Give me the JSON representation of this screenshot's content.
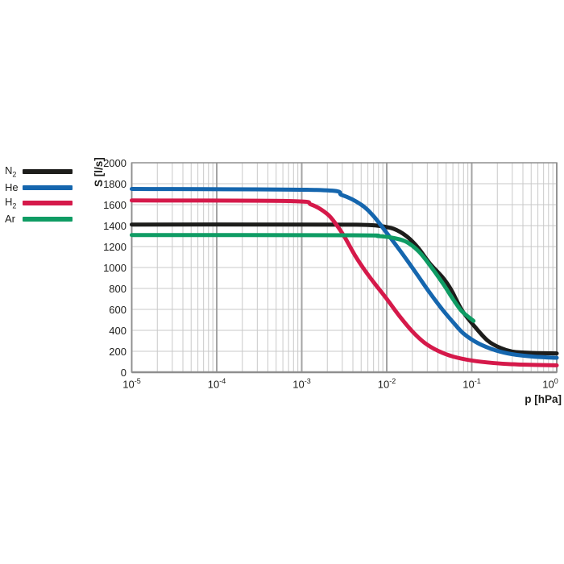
{
  "colors": {
    "background": "#ffffff",
    "text": "#1d1d1b",
    "grid_minor": "#c9c9c9",
    "grid_major": "#a4a4a4",
    "frame": "#8f8f8f",
    "n2": "#1d1d1b",
    "he": "#1566ae",
    "h2": "#d5194a",
    "ar": "#0f9c64"
  },
  "legend": {
    "items": [
      {
        "id": "N2",
        "label": "N",
        "sub": "2",
        "color": "#1d1d1b"
      },
      {
        "id": "He",
        "label": "He",
        "sub": "",
        "color": "#1566ae"
      },
      {
        "id": "H2",
        "label": "H",
        "sub": "2",
        "color": "#d5194a"
      },
      {
        "id": "Ar",
        "label": "Ar",
        "sub": "",
        "color": "#0f9c64"
      }
    ]
  },
  "chart_data": {
    "type": "line",
    "title": "",
    "x_axis": {
      "label": "p [hPa]",
      "scale": "log",
      "unit": "hPa",
      "min_exp": -5,
      "max_exp": 0,
      "tick_base": "10",
      "tick_exponents": [
        -5,
        -4,
        -3,
        -2,
        -1,
        0
      ]
    },
    "y_axis": {
      "label": "S [l/s]",
      "scale": "linear",
      "unit": "l/s",
      "min": 0,
      "max": 2000,
      "tick_step": 200,
      "ticks": [
        0,
        200,
        400,
        600,
        800,
        1000,
        1200,
        1400,
        1600,
        1800,
        2000
      ]
    },
    "grid": true,
    "legend_position": "left",
    "series": [
      {
        "name": "N2",
        "color": "#1d1d1b",
        "points": [
          [
            1e-05,
            1410
          ],
          [
            0.001,
            1410
          ],
          [
            0.005,
            1408
          ],
          [
            0.008,
            1398
          ],
          [
            0.012,
            1370
          ],
          [
            0.017,
            1300
          ],
          [
            0.023,
            1195
          ],
          [
            0.032,
            1040
          ],
          [
            0.046,
            900
          ],
          [
            0.057,
            790
          ],
          [
            0.077,
            590
          ],
          [
            0.11,
            430
          ],
          [
            0.155,
            300
          ],
          [
            0.22,
            230
          ],
          [
            0.31,
            195
          ],
          [
            0.5,
            185
          ],
          [
            1,
            180
          ]
        ]
      },
      {
        "name": "He",
        "color": "#1566ae",
        "points": [
          [
            1e-05,
            1750
          ],
          [
            0.0015,
            1740
          ],
          [
            0.003,
            1690
          ],
          [
            0.005,
            1600
          ],
          [
            0.007,
            1490
          ],
          [
            0.01,
            1330
          ],
          [
            0.015,
            1140
          ],
          [
            0.022,
            950
          ],
          [
            0.032,
            760
          ],
          [
            0.045,
            600
          ],
          [
            0.06,
            480
          ],
          [
            0.08,
            370
          ],
          [
            0.12,
            275
          ],
          [
            0.19,
            210
          ],
          [
            0.3,
            172
          ],
          [
            0.55,
            148
          ],
          [
            1,
            138
          ]
        ]
      },
      {
        "name": "H2",
        "color": "#d5194a",
        "points": [
          [
            1e-05,
            1640
          ],
          [
            0.0007,
            1635
          ],
          [
            0.0013,
            1600
          ],
          [
            0.002,
            1510
          ],
          [
            0.0026,
            1400
          ],
          [
            0.0032,
            1290
          ],
          [
            0.0042,
            1120
          ],
          [
            0.0055,
            975
          ],
          [
            0.007,
            860
          ],
          [
            0.01,
            700
          ],
          [
            0.014,
            540
          ],
          [
            0.02,
            390
          ],
          [
            0.028,
            280
          ],
          [
            0.04,
            205
          ],
          [
            0.06,
            150
          ],
          [
            0.1,
            112
          ],
          [
            0.18,
            88
          ],
          [
            0.35,
            74
          ],
          [
            1,
            66
          ]
        ]
      },
      {
        "name": "Ar",
        "color": "#0f9c64",
        "points": [
          [
            1e-05,
            1310
          ],
          [
            0.004,
            1308
          ],
          [
            0.008,
            1300
          ],
          [
            0.012,
            1282
          ],
          [
            0.017,
            1245
          ],
          [
            0.024,
            1150
          ],
          [
            0.033,
            1010
          ],
          [
            0.046,
            845
          ],
          [
            0.06,
            700
          ],
          [
            0.077,
            580
          ],
          [
            0.105,
            490
          ]
        ]
      }
    ]
  }
}
